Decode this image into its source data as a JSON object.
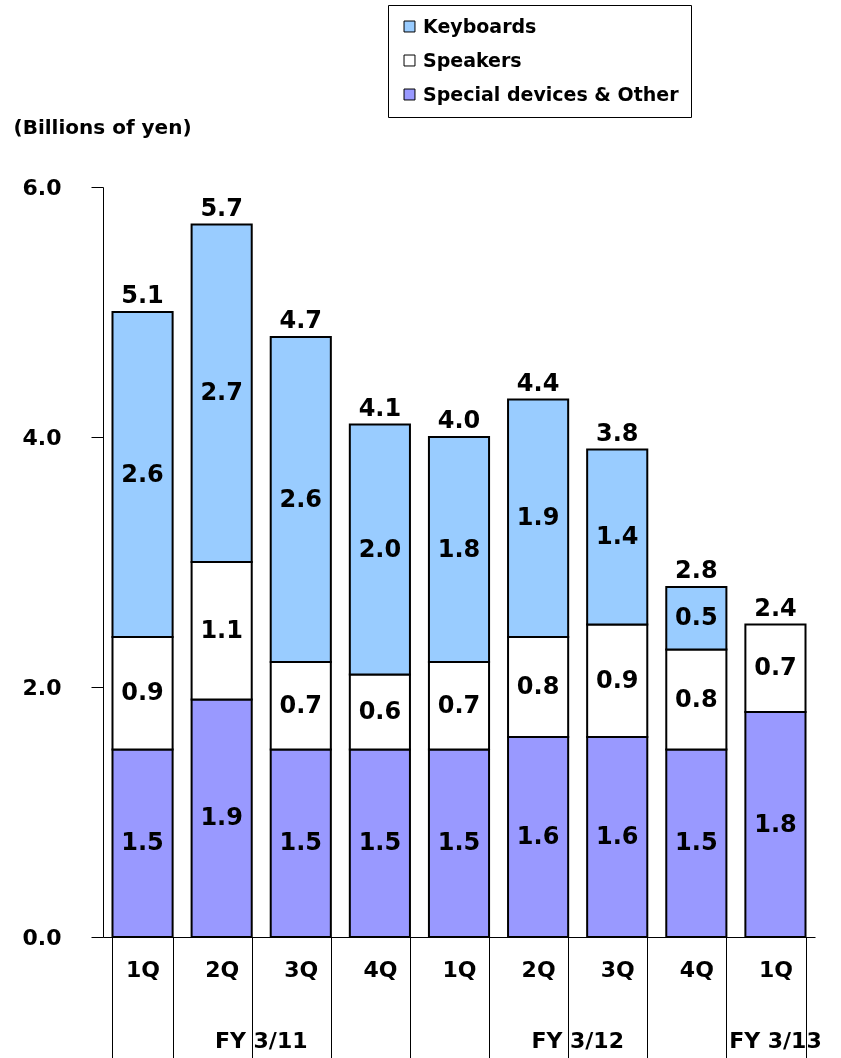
{
  "chart_data": {
    "type": "bar",
    "stacked": true,
    "ylabel": "(Billions of yen)",
    "categories": [
      "1Q",
      "2Q",
      "3Q",
      "4Q",
      "1Q",
      "2Q",
      "3Q",
      "4Q",
      "1Q"
    ],
    "series": [
      {
        "name": "Special devices & Other",
        "color": "#9999ff",
        "values": [
          1.5,
          1.9,
          1.5,
          1.5,
          1.5,
          1.6,
          1.6,
          1.5,
          1.8
        ]
      },
      {
        "name": "Speakers",
        "color": "#ffffff",
        "values": [
          0.9,
          1.1,
          0.7,
          0.6,
          0.7,
          0.8,
          0.9,
          0.8,
          0.7
        ]
      },
      {
        "name": "Keyboards",
        "color": "#99ccff",
        "values": [
          2.6,
          2.7,
          2.6,
          2.0,
          1.8,
          1.9,
          1.4,
          0.5,
          null
        ]
      }
    ],
    "value_labels": [
      [
        "1.5",
        "1.9",
        "1.5",
        "1.5",
        "1.5",
        "1.6",
        "1.6",
        "1.5",
        "1.8"
      ],
      [
        "0.9",
        "1.1",
        "0.7",
        "0.6",
        "0.7",
        "0.8",
        "0.9",
        "0.8",
        "0.7"
      ],
      [
        "2.6",
        "2.7",
        "2.6",
        "2.0",
        "1.8",
        "1.9",
        "1.4",
        "0.5",
        null
      ]
    ],
    "totals": [
      "5.1",
      "5.7",
      "4.7",
      "4.1",
      "4.0",
      "4.4",
      "3.8",
      "2.8",
      "2.4"
    ],
    "ylim": [
      0,
      6
    ],
    "yticks": [
      {
        "value": 0,
        "label": "0.0"
      },
      {
        "value": 2,
        "label": "2.0"
      },
      {
        "value": 4,
        "label": "4.0"
      },
      {
        "value": 6,
        "label": "6.0"
      }
    ],
    "legend": "top right",
    "grid": false,
    "annotations": [
      "FY 3/11",
      "FY 3/12",
      "FY 3/13"
    ]
  }
}
